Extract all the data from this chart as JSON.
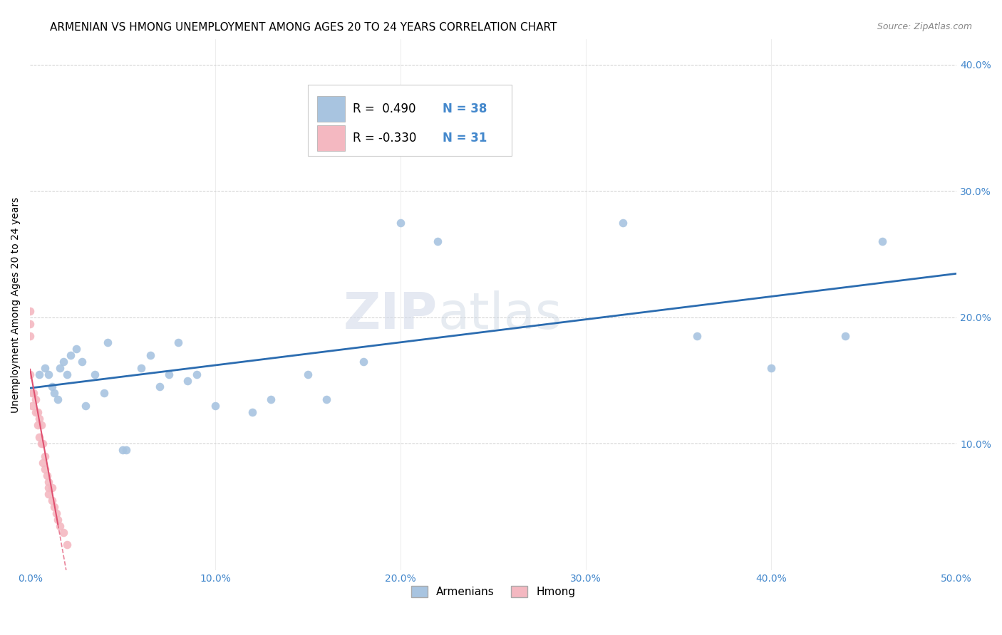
{
  "title": "ARMENIAN VS HMONG UNEMPLOYMENT AMONG AGES 20 TO 24 YEARS CORRELATION CHART",
  "source": "Source: ZipAtlas.com",
  "ylabel": "Unemployment Among Ages 20 to 24 years",
  "xlim": [
    0.0,
    0.5
  ],
  "ylim": [
    0.0,
    0.42
  ],
  "xticks": [
    0.0,
    0.1,
    0.2,
    0.3,
    0.4,
    0.5
  ],
  "yticks": [
    0.0,
    0.1,
    0.2,
    0.3,
    0.4
  ],
  "xtick_labels": [
    "0.0%",
    "10.0%",
    "20.0%",
    "30.0%",
    "40.0%",
    "50.0%"
  ],
  "right_ytick_labels": [
    "",
    "10.0%",
    "20.0%",
    "30.0%",
    "40.0%"
  ],
  "armenian_x": [
    0.005,
    0.008,
    0.01,
    0.012,
    0.013,
    0.015,
    0.016,
    0.018,
    0.02,
    0.022,
    0.025,
    0.028,
    0.03,
    0.035,
    0.04,
    0.042,
    0.05,
    0.052,
    0.06,
    0.065,
    0.07,
    0.075,
    0.08,
    0.085,
    0.09,
    0.1,
    0.12,
    0.13,
    0.15,
    0.16,
    0.18,
    0.2,
    0.22,
    0.32,
    0.36,
    0.4,
    0.44,
    0.46
  ],
  "armenian_y": [
    0.155,
    0.16,
    0.155,
    0.145,
    0.14,
    0.135,
    0.16,
    0.165,
    0.155,
    0.17,
    0.175,
    0.165,
    0.13,
    0.155,
    0.14,
    0.18,
    0.095,
    0.095,
    0.16,
    0.17,
    0.145,
    0.155,
    0.18,
    0.15,
    0.155,
    0.13,
    0.125,
    0.135,
    0.155,
    0.135,
    0.165,
    0.275,
    0.26,
    0.275,
    0.185,
    0.16,
    0.185,
    0.26
  ],
  "hmong_x": [
    0.0,
    0.0,
    0.0,
    0.0,
    0.001,
    0.001,
    0.002,
    0.003,
    0.003,
    0.004,
    0.004,
    0.005,
    0.005,
    0.006,
    0.006,
    0.007,
    0.007,
    0.008,
    0.008,
    0.009,
    0.01,
    0.01,
    0.01,
    0.012,
    0.012,
    0.013,
    0.014,
    0.015,
    0.016,
    0.018,
    0.02
  ],
  "hmong_y": [
    0.205,
    0.195,
    0.185,
    0.155,
    0.13,
    0.14,
    0.14,
    0.125,
    0.135,
    0.115,
    0.125,
    0.12,
    0.105,
    0.1,
    0.115,
    0.1,
    0.085,
    0.08,
    0.09,
    0.075,
    0.07,
    0.065,
    0.06,
    0.065,
    0.055,
    0.05,
    0.045,
    0.04,
    0.035,
    0.03,
    0.02
  ],
  "armenian_color": "#a8c4e0",
  "hmong_color": "#f4b8c1",
  "armenian_line_color": "#2b6cb0",
  "hmong_line_color": "#e05070",
  "armenian_R": 0.49,
  "armenian_N": 38,
  "hmong_R": -0.33,
  "hmong_N": 31,
  "legend_armenian_label": "Armenians",
  "legend_hmong_label": "Hmong",
  "marker_size": 70,
  "background_color": "#ffffff",
  "grid_color": "#cccccc",
  "watermark_zip": "ZIP",
  "watermark_atlas": "atlas",
  "title_fontsize": 11,
  "axis_label_fontsize": 10,
  "tick_fontsize": 10,
  "tick_color": "#4488cc",
  "source_fontsize": 9
}
